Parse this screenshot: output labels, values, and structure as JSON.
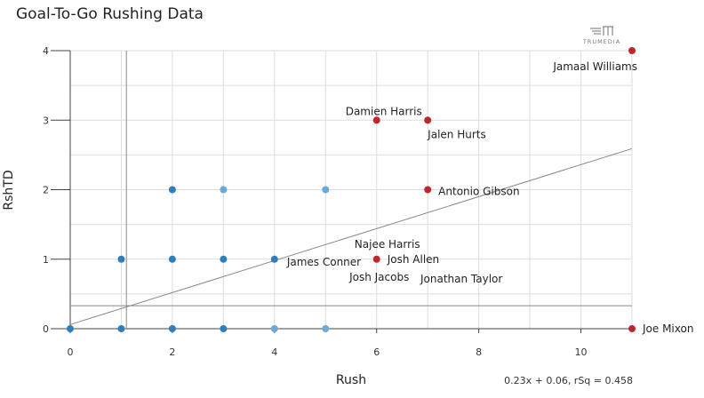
{
  "title": "Goal-To-Go Rushing Data",
  "logo_text": "TRUMEDIA",
  "chart_data": {
    "type": "scatter",
    "title": "Goal-To-Go Rushing Data",
    "xlabel": "Rush",
    "ylabel": "RshTD",
    "xlim": [
      0,
      11
    ],
    "ylim": [
      0,
      4
    ],
    "xticks": [
      0,
      2,
      4,
      6,
      8,
      10
    ],
    "yticks": [
      0,
      1,
      2,
      3,
      4
    ],
    "grid": true,
    "mean_lines": {
      "x": 1.1,
      "y": 0.33
    },
    "trendline": {
      "slope": 0.23,
      "intercept": 0.06,
      "label": "0.23x + 0.06, rSq = 0.458"
    },
    "colors": {
      "blue": "#2f7ebc",
      "light_blue": "#6aaad8",
      "red": "#c0272d",
      "grid": "#dddddd",
      "axis": "#444444"
    },
    "points": [
      {
        "x": 0,
        "y": 0,
        "color": "blue"
      },
      {
        "x": 1,
        "y": 0,
        "color": "blue"
      },
      {
        "x": 2,
        "y": 0,
        "color": "blue"
      },
      {
        "x": 3,
        "y": 0,
        "color": "blue"
      },
      {
        "x": 4,
        "y": 0,
        "color": "light_blue"
      },
      {
        "x": 5,
        "y": 0,
        "color": "light_blue"
      },
      {
        "x": 1,
        "y": 1,
        "color": "blue"
      },
      {
        "x": 2,
        "y": 1,
        "color": "blue"
      },
      {
        "x": 3,
        "y": 1,
        "color": "blue"
      },
      {
        "x": 4,
        "y": 1,
        "color": "blue"
      },
      {
        "x": 2,
        "y": 2,
        "color": "blue"
      },
      {
        "x": 3,
        "y": 2,
        "color": "light_blue"
      },
      {
        "x": 5,
        "y": 2,
        "color": "light_blue"
      },
      {
        "x": 11,
        "y": 4,
        "color": "red"
      },
      {
        "x": 6,
        "y": 3,
        "color": "red"
      },
      {
        "x": 7,
        "y": 3,
        "color": "red"
      },
      {
        "x": 7,
        "y": 2,
        "color": "red"
      },
      {
        "x": 6,
        "y": 1,
        "color": "red"
      },
      {
        "x": 11,
        "y": 0,
        "color": "red"
      }
    ],
    "labels": [
      {
        "text": "Jamaal Williams",
        "x": 11,
        "y": 4,
        "anchor": "end",
        "dx": 6,
        "dy": 18
      },
      {
        "text": "Damien Harris",
        "x": 6,
        "y": 3,
        "anchor": "middle",
        "dx": 8,
        "dy": -10
      },
      {
        "text": "Jalen Hurts",
        "x": 7,
        "y": 3,
        "anchor": "start",
        "dx": 0,
        "dy": 16
      },
      {
        "text": "Antonio Gibson",
        "x": 7,
        "y": 2,
        "anchor": "start",
        "dx": 12,
        "dy": 2
      },
      {
        "text": "Najee Harris",
        "x": 6,
        "y": 1,
        "anchor": "middle",
        "dx": 12,
        "dy": -17
      },
      {
        "text": "Josh Allen",
        "x": 6,
        "y": 1,
        "anchor": "start",
        "dx": 12,
        "dy": 0
      },
      {
        "text": "James Conner",
        "x": 4,
        "y": 1,
        "anchor": "start",
        "dx": 14,
        "dy": 3
      },
      {
        "text": "Josh Jacobs",
        "x": 6,
        "y": 1,
        "anchor": "middle",
        "dx": 3,
        "dy": 20
      },
      {
        "text": "Jonathan Taylor",
        "x": 7,
        "y": 1,
        "anchor": "middle",
        "dx": 38,
        "dy": 22
      },
      {
        "text": "Joe Mixon",
        "x": 11,
        "y": 0,
        "anchor": "start",
        "dx": 12,
        "dy": 0
      }
    ]
  }
}
